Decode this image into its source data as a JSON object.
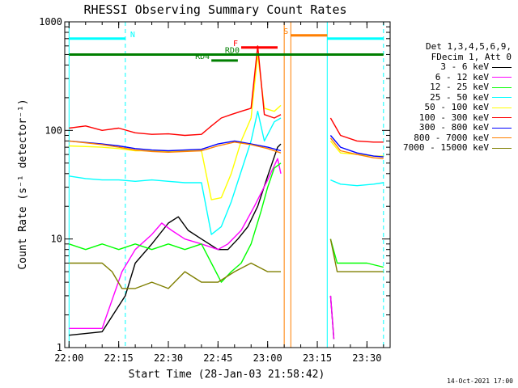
{
  "chart_data": {
    "type": "line",
    "title": "RHESSI Observing Summary Count Rates",
    "xlabel": "Start Time (28-Jan-03 21:58:42)",
    "ylabel": "Count Rate (s⁻¹ detector⁻¹)",
    "yscale": "log",
    "ylim": [
      1,
      1000
    ],
    "xlim": [
      "22:00",
      "23:37"
    ],
    "x_ticks": [
      "22:00",
      "22:15",
      "22:30",
      "22:45",
      "23:00",
      "23:15",
      "23:30"
    ],
    "y_ticks": [
      "1",
      "10",
      "100",
      "1000"
    ],
    "legend_header": [
      "Det 1,3,4,5,6,9,",
      "FDecim 1, Att 0"
    ],
    "timestamp": "14-Oct-2021 17:00",
    "series": [
      {
        "name": "3 - 6 keV",
        "color": "#000000",
        "points": [
          [
            "22:00",
            1.3
          ],
          [
            "22:10",
            1.4
          ],
          [
            "22:17",
            3
          ],
          [
            "22:20",
            6
          ],
          [
            "22:25",
            9
          ],
          [
            "22:30",
            14
          ],
          [
            "22:33",
            16
          ],
          [
            "22:36",
            12
          ],
          [
            "22:40",
            10
          ],
          [
            "22:45",
            8
          ],
          [
            "22:48",
            8
          ],
          [
            "22:51",
            10
          ],
          [
            "22:54",
            13
          ],
          [
            "22:57",
            20
          ],
          [
            "23:00",
            38
          ],
          [
            "23:03",
            70
          ],
          [
            "23:04",
            75
          ]
        ]
      },
      {
        "name": "6 - 12 keV",
        "color": "#ff00ff",
        "points": [
          [
            "22:00",
            1.5
          ],
          [
            "22:10",
            1.5
          ],
          [
            "22:16",
            5
          ],
          [
            "22:20",
            8
          ],
          [
            "22:25",
            11
          ],
          [
            "22:28",
            14
          ],
          [
            "22:31",
            12
          ],
          [
            "22:35",
            10
          ],
          [
            "22:40",
            9
          ],
          [
            "22:45",
            8
          ],
          [
            "22:48",
            9
          ],
          [
            "22:52",
            12
          ],
          [
            "22:56",
            20
          ],
          [
            "23:00",
            35
          ],
          [
            "23:03",
            55
          ],
          [
            "23:04",
            40
          ]
        ]
      },
      {
        "name": "12 - 25 keV",
        "color": "#00ff00",
        "points": [
          [
            "22:00",
            9
          ],
          [
            "22:05",
            8
          ],
          [
            "22:10",
            9
          ],
          [
            "22:15",
            8
          ],
          [
            "22:20",
            9
          ],
          [
            "22:25",
            8
          ],
          [
            "22:30",
            9
          ],
          [
            "22:35",
            8
          ],
          [
            "22:40",
            9
          ],
          [
            "22:43",
            6
          ],
          [
            "22:46",
            4
          ],
          [
            "22:49",
            5
          ],
          [
            "22:52",
            6
          ],
          [
            "22:55",
            9
          ],
          [
            "22:58",
            18
          ],
          [
            "23:00",
            30
          ],
          [
            "23:02",
            45
          ],
          [
            "23:04",
            50
          ]
        ]
      },
      {
        "name": "25 - 50 keV",
        "color": "#00ffff",
        "points": [
          [
            "22:00",
            38
          ],
          [
            "22:05",
            36
          ],
          [
            "22:10",
            35
          ],
          [
            "22:15",
            35
          ],
          [
            "22:20",
            34
          ],
          [
            "22:25",
            35
          ],
          [
            "22:30",
            34
          ],
          [
            "22:35",
            33
          ],
          [
            "22:40",
            33
          ],
          [
            "22:43",
            11
          ],
          [
            "22:46",
            13
          ],
          [
            "22:49",
            22
          ],
          [
            "22:52",
            42
          ],
          [
            "22:55",
            80
          ],
          [
            "22:57",
            150
          ],
          [
            "22:59",
            80
          ],
          [
            "23:02",
            120
          ],
          [
            "23:04",
            130
          ]
        ]
      },
      {
        "name": "50 - 100 keV",
        "color": "#ffff00",
        "points": [
          [
            "22:00",
            72
          ],
          [
            "22:10",
            70
          ],
          [
            "22:15",
            68
          ],
          [
            "22:20",
            65
          ],
          [
            "22:25",
            65
          ],
          [
            "22:30",
            64
          ],
          [
            "22:35",
            65
          ],
          [
            "22:40",
            65
          ],
          [
            "22:43",
            23
          ],
          [
            "22:46",
            24
          ],
          [
            "22:49",
            40
          ],
          [
            "22:52",
            80
          ],
          [
            "22:55",
            130
          ],
          [
            "22:57",
            500
          ],
          [
            "22:59",
            160
          ],
          [
            "23:02",
            150
          ],
          [
            "23:04",
            170
          ]
        ]
      },
      {
        "name": "100 - 300 keV",
        "color": "#ff0000",
        "points": [
          [
            "22:00",
            105
          ],
          [
            "22:05",
            110
          ],
          [
            "22:10",
            100
          ],
          [
            "22:15",
            105
          ],
          [
            "22:20",
            95
          ],
          [
            "22:25",
            92
          ],
          [
            "22:30",
            93
          ],
          [
            "22:35",
            90
          ],
          [
            "22:40",
            92
          ],
          [
            "22:43",
            110
          ],
          [
            "22:46",
            130
          ],
          [
            "22:49",
            140
          ],
          [
            "22:52",
            150
          ],
          [
            "22:55",
            160
          ],
          [
            "22:57",
            600
          ],
          [
            "22:59",
            140
          ],
          [
            "23:02",
            130
          ],
          [
            "23:04",
            140
          ]
        ]
      },
      {
        "name": "300 - 800 keV",
        "color": "#0000ff",
        "points": [
          [
            "22:00",
            80
          ],
          [
            "22:10",
            75
          ],
          [
            "22:15",
            72
          ],
          [
            "22:20",
            68
          ],
          [
            "22:25",
            66
          ],
          [
            "22:30",
            65
          ],
          [
            "22:35",
            66
          ],
          [
            "22:40",
            67
          ],
          [
            "22:45",
            75
          ],
          [
            "22:50",
            80
          ],
          [
            "22:55",
            75
          ],
          [
            "23:00",
            70
          ],
          [
            "23:04",
            65
          ]
        ]
      },
      {
        "name": "800 - 7000 keV",
        "color": "#ff7f00",
        "points": [
          [
            "22:00",
            80
          ],
          [
            "22:10",
            74
          ],
          [
            "22:15",
            70
          ],
          [
            "22:20",
            66
          ],
          [
            "22:25",
            64
          ],
          [
            "22:30",
            63
          ],
          [
            "22:35",
            64
          ],
          [
            "22:40",
            65
          ],
          [
            "22:45",
            72
          ],
          [
            "22:50",
            78
          ],
          [
            "22:55",
            74
          ],
          [
            "23:00",
            68
          ],
          [
            "23:04",
            62
          ]
        ]
      },
      {
        "name": "7000 - 15000 keV",
        "color": "#7f7f00",
        "points": [
          [
            "22:00",
            6
          ],
          [
            "22:05",
            6
          ],
          [
            "22:10",
            6
          ],
          [
            "22:13",
            5
          ],
          [
            "22:16",
            3.5
          ],
          [
            "22:20",
            3.5
          ],
          [
            "22:25",
            4
          ],
          [
            "22:30",
            3.5
          ],
          [
            "22:35",
            5
          ],
          [
            "22:40",
            4
          ],
          [
            "22:45",
            4
          ],
          [
            "22:50",
            5
          ],
          [
            "22:55",
            6
          ],
          [
            "23:00",
            5
          ],
          [
            "23:04",
            5
          ]
        ]
      }
    ],
    "second_segment": [
      {
        "name": "3 - 6 keV",
        "points": [
          [
            "23:19",
            3
          ],
          [
            "23:20",
            1.2
          ]
        ]
      },
      {
        "name": "6 - 12 keV",
        "points": [
          [
            "23:19",
            3
          ],
          [
            "23:20",
            1.2
          ]
        ]
      },
      {
        "name": "12 - 25 keV",
        "points": [
          [
            "23:19",
            10
          ],
          [
            "23:21",
            6
          ],
          [
            "23:25",
            6
          ],
          [
            "23:30",
            6
          ],
          [
            "23:35",
            5.5
          ]
        ]
      },
      {
        "name": "25 - 50 keV",
        "points": [
          [
            "23:19",
            35
          ],
          [
            "23:22",
            32
          ],
          [
            "23:27",
            31
          ],
          [
            "23:32",
            32
          ],
          [
            "23:35",
            33
          ]
        ]
      },
      {
        "name": "50 - 100 keV",
        "points": [
          [
            "23:19",
            80
          ],
          [
            "23:22",
            62
          ],
          [
            "23:27",
            60
          ],
          [
            "23:32",
            58
          ],
          [
            "23:35",
            58
          ]
        ]
      },
      {
        "name": "100 - 300 keV",
        "points": [
          [
            "23:19",
            130
          ],
          [
            "23:22",
            90
          ],
          [
            "23:27",
            80
          ],
          [
            "23:32",
            78
          ],
          [
            "23:35",
            78
          ]
        ]
      },
      {
        "name": "300 - 800 keV",
        "points": [
          [
            "23:19",
            90
          ],
          [
            "23:22",
            70
          ],
          [
            "23:27",
            62
          ],
          [
            "23:32",
            58
          ],
          [
            "23:35",
            57
          ]
        ]
      },
      {
        "name": "800 - 7000 keV",
        "points": [
          [
            "23:19",
            85
          ],
          [
            "23:22",
            65
          ],
          [
            "23:27",
            60
          ],
          [
            "23:32",
            56
          ],
          [
            "23:35",
            55
          ]
        ]
      },
      {
        "name": "7000 - 15000 keV",
        "points": [
          [
            "23:19",
            10
          ],
          [
            "23:21",
            5
          ],
          [
            "23:25",
            5
          ],
          [
            "23:30",
            5
          ],
          [
            "23:35",
            5
          ]
        ]
      }
    ],
    "flag_bars": [
      {
        "label": "N",
        "color": "#00ffff",
        "y": 700,
        "ranges": [
          [
            "22:00",
            "22:17"
          ],
          [
            "23:18",
            "23:35"
          ]
        ]
      },
      {
        "label": "S",
        "color": "#ff7f00",
        "y": 750,
        "ranges": [
          [
            "23:07",
            "23:18"
          ]
        ]
      },
      {
        "label": "F",
        "color": "#ff0000",
        "y": 580,
        "ranges": [
          [
            "22:52",
            "23:03"
          ]
        ]
      },
      {
        "label": "RD0",
        "color": "#007f00",
        "y": 500,
        "ranges": [
          [
            "22:00",
            "23:35"
          ]
        ]
      },
      {
        "label": "RD4",
        "color": "#007f00",
        "y": 440,
        "ranges": [
          [
            "22:43",
            "22:51"
          ]
        ]
      }
    ],
    "vertical_lines": [
      {
        "x": "22:00",
        "color": "#00ffff",
        "style": "solid"
      },
      {
        "x": "22:17",
        "color": "#00ffff",
        "style": "dashed"
      },
      {
        "x": "23:05",
        "color": "#ff7f00",
        "style": "solid"
      },
      {
        "x": "23:07",
        "color": "#ff7f00",
        "style": "solid"
      },
      {
        "x": "23:18",
        "color": "#00ffff",
        "style": "solid"
      },
      {
        "x": "23:35",
        "color": "#00ffff",
        "style": "dashed"
      }
    ]
  }
}
